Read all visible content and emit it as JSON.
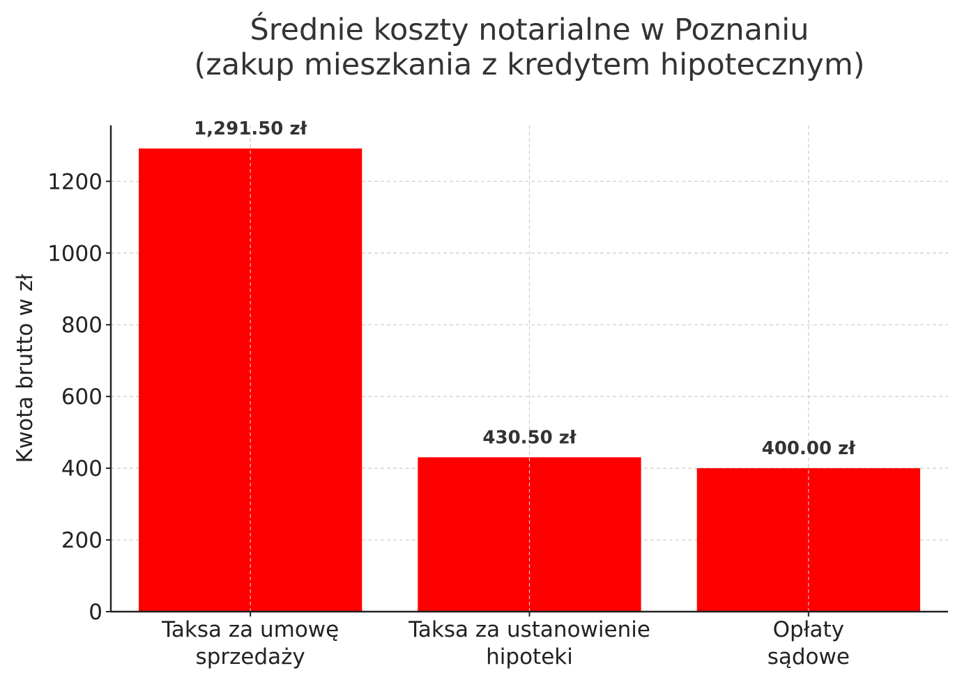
{
  "title_line1": "Średnie koszty notarialne w Poznaniu",
  "title_line2": "(zakup mieszkania z kredytem hipotecznym)",
  "ylabel": "Kwota brutto w zł",
  "colors": {
    "bar": "#ff0000",
    "grid": "#cccccc",
    "axis": "#222222",
    "text": "#333333"
  },
  "chart_data": {
    "type": "bar",
    "title": "Średnie koszty notarialne w Poznaniu (zakup mieszkania z kredytem hipotecznym)",
    "xlabel": "",
    "ylabel": "Kwota brutto w zł",
    "categories": [
      "Taksa za umowę sprzedaży",
      "Taksa za ustanowienie hipoteki",
      "Opłaty sądowe"
    ],
    "category_lines": [
      [
        "Taksa za umowę",
        "sprzedaży"
      ],
      [
        "Taksa za ustanowienie",
        "hipoteki"
      ],
      [
        "Opłaty",
        "sądowe"
      ]
    ],
    "values": [
      1291.5,
      430.5,
      400.0
    ],
    "data_labels": [
      "1,291.50 zł",
      "430.50 zł",
      "400.00 zł"
    ],
    "yticks": [
      0,
      200,
      400,
      600,
      800,
      1000,
      1200
    ],
    "ylim": [
      0,
      1356
    ],
    "grid": true,
    "legend": null,
    "bar_color": "#ff0000"
  }
}
